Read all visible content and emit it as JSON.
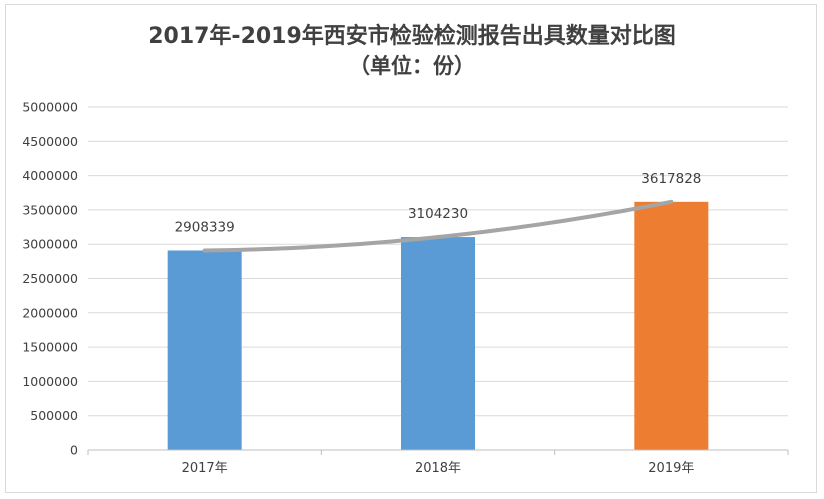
{
  "chart_data": {
    "type": "bar",
    "title": "2017年-2019年西安市检验检测报告出具数量对比图",
    "subtitle": "（单位：份）",
    "categories": [
      "2017年",
      "2018年",
      "2019年"
    ],
    "series": [
      {
        "values": [
          2908339,
          3104230,
          3617828
        ]
      }
    ],
    "data_labels": [
      "2908339",
      "3104230",
      "3617828"
    ],
    "bar_colors": [
      "#5b9bd5",
      "#5b9bd5",
      "#ed7d31"
    ],
    "trendline": {
      "type": "smooth",
      "color": "#a5a5a5"
    },
    "ylim": [
      0,
      5000000
    ],
    "yticks": [
      0,
      500000,
      1000000,
      1500000,
      2000000,
      2500000,
      3000000,
      3500000,
      4000000,
      4500000,
      5000000
    ],
    "ytick_labels": [
      "0",
      "500000",
      "1000000",
      "1500000",
      "2000000",
      "2500000",
      "3000000",
      "3500000",
      "4000000",
      "4500000",
      "5000000"
    ],
    "grid": true,
    "legend": "none"
  }
}
